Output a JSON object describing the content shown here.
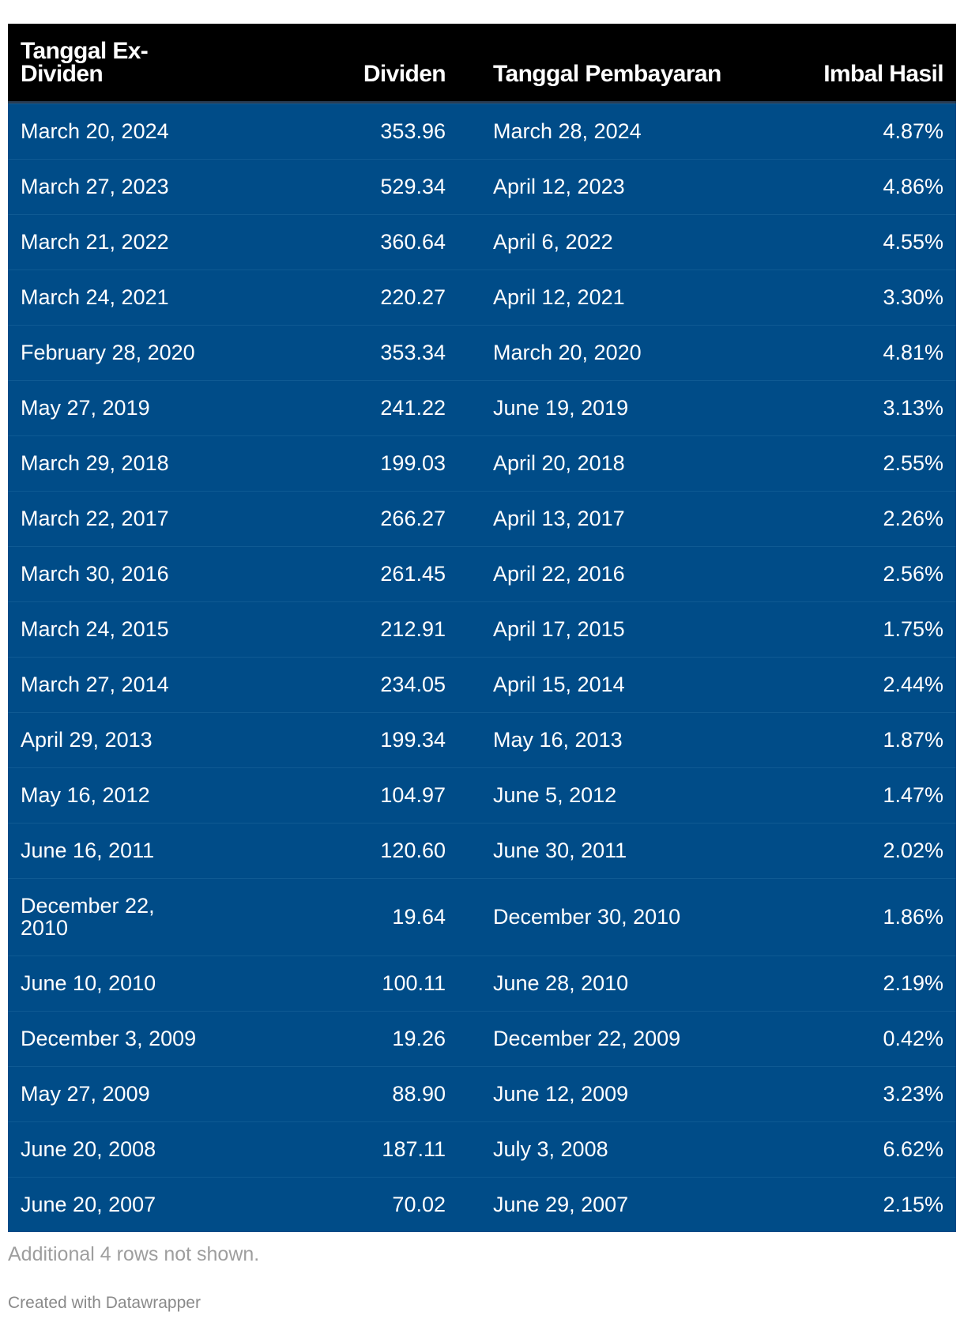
{
  "table": {
    "headers": {
      "ex_date": "Tanggal Ex-\nDividen",
      "dividend": "Dividen",
      "pay_date": "Tanggal Pembayaran",
      "yield": "Imbal Hasil"
    },
    "rows": [
      {
        "ex_date": "March 20, 2024",
        "dividend": "353.96",
        "pay_date": "March 28, 2024",
        "yield": "4.87%"
      },
      {
        "ex_date": "March 27, 2023",
        "dividend": "529.34",
        "pay_date": "April 12, 2023",
        "yield": "4.86%"
      },
      {
        "ex_date": "March 21, 2022",
        "dividend": "360.64",
        "pay_date": "April 6, 2022",
        "yield": "4.55%"
      },
      {
        "ex_date": "March 24, 2021",
        "dividend": "220.27",
        "pay_date": "April 12, 2021",
        "yield": "3.30%"
      },
      {
        "ex_date": "February 28, 2020",
        "dividend": "353.34",
        "pay_date": "March 20, 2020",
        "yield": "4.81%"
      },
      {
        "ex_date": "May 27, 2019",
        "dividend": "241.22",
        "pay_date": "June 19, 2019",
        "yield": "3.13%"
      },
      {
        "ex_date": "March 29, 2018",
        "dividend": "199.03",
        "pay_date": "April 20, 2018",
        "yield": "2.55%"
      },
      {
        "ex_date": "March 22, 2017",
        "dividend": "266.27",
        "pay_date": "April 13, 2017",
        "yield": "2.26%"
      },
      {
        "ex_date": "March 30, 2016",
        "dividend": "261.45",
        "pay_date": "April 22, 2016",
        "yield": "2.56%"
      },
      {
        "ex_date": "March 24, 2015",
        "dividend": "212.91",
        "pay_date": "April 17, 2015",
        "yield": "1.75%"
      },
      {
        "ex_date": "March 27, 2014",
        "dividend": "234.05",
        "pay_date": "April 15, 2014",
        "yield": "2.44%"
      },
      {
        "ex_date": "April 29, 2013",
        "dividend": "199.34",
        "pay_date": "May 16, 2013",
        "yield": "1.87%"
      },
      {
        "ex_date": "May 16, 2012",
        "dividend": "104.97",
        "pay_date": "June 5, 2012",
        "yield": "1.47%"
      },
      {
        "ex_date": "June 16, 2011",
        "dividend": "120.60",
        "pay_date": "June 30, 2011",
        "yield": "2.02%"
      },
      {
        "ex_date": "December 22,\n2010",
        "dividend": "19.64",
        "pay_date": "December 30, 2010",
        "yield": "1.86%"
      },
      {
        "ex_date": "June 10, 2010",
        "dividend": "100.11",
        "pay_date": "June 28, 2010",
        "yield": "2.19%"
      },
      {
        "ex_date": "December 3, 2009",
        "dividend": "19.26",
        "pay_date": "December 22, 2009",
        "yield": "0.42%"
      },
      {
        "ex_date": "May 27, 2009",
        "dividend": "88.90",
        "pay_date": "June 12, 2009",
        "yield": "3.23%"
      },
      {
        "ex_date": "June 20, 2008",
        "dividend": "187.11",
        "pay_date": "July 3, 2008",
        "yield": "6.62%"
      },
      {
        "ex_date": "June 20, 2007",
        "dividend": "70.02",
        "pay_date": "June 29, 2007",
        "yield": "2.15%"
      }
    ]
  },
  "footer": {
    "note": "Additional 4 rows not shown.",
    "credit": "Created with Datawrapper"
  },
  "colors": {
    "header_bg": "#000000",
    "row_bg": "#004c88",
    "text": "#ffffff",
    "note": "#9e9e9e"
  }
}
